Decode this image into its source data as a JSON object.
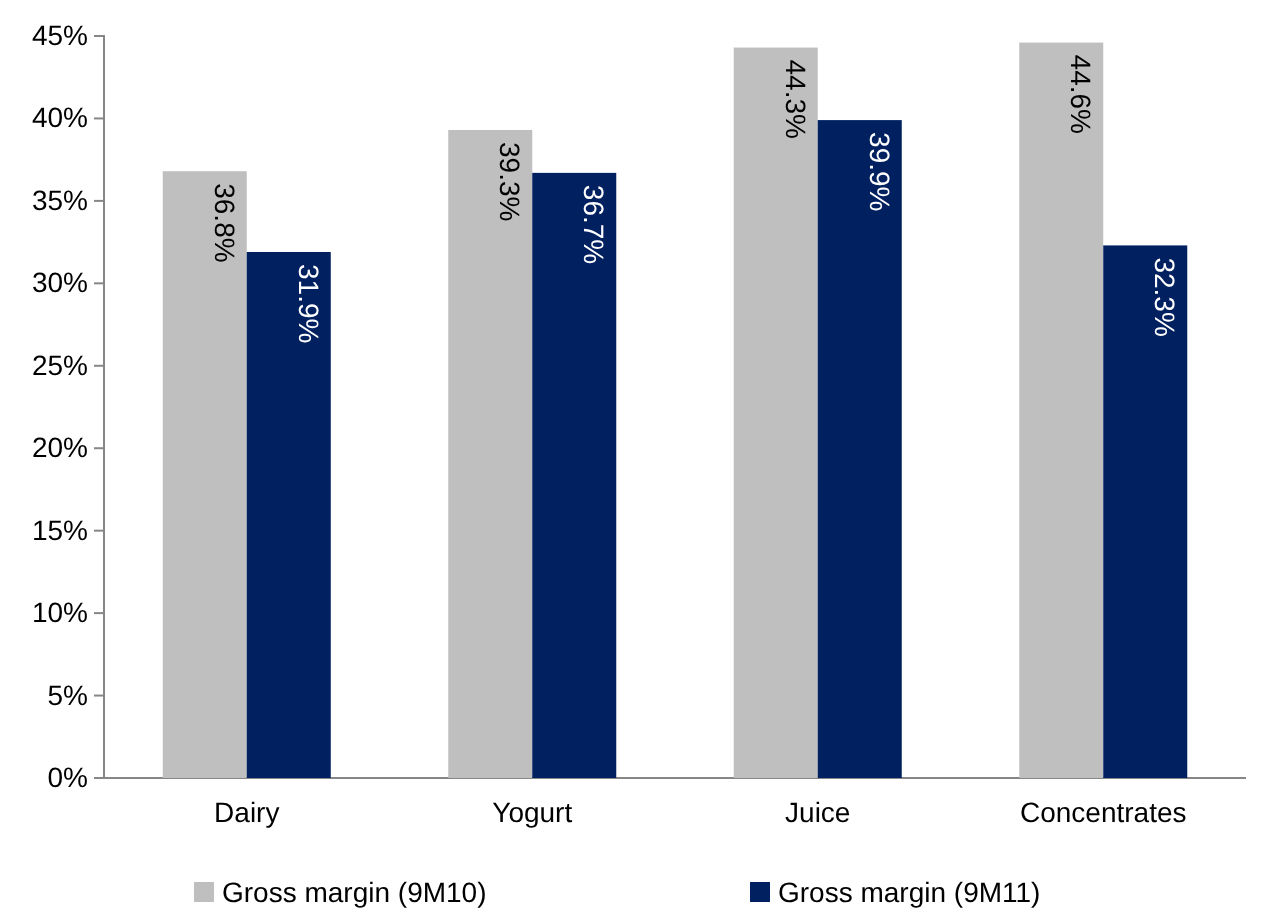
{
  "chart_data": {
    "type": "bar",
    "categories": [
      "Dairy",
      "Yogurt",
      "Juice",
      "Concentrates"
    ],
    "series": [
      {
        "name": "Gross margin (9M10)",
        "color": "#bfbfbf",
        "values": [
          36.8,
          39.3,
          44.3,
          44.6
        ],
        "value_labels": [
          "36.8%",
          "39.3%",
          "44.3%",
          "44.6%"
        ]
      },
      {
        "name": "Gross margin (9M11)",
        "color": "#002060",
        "values": [
          31.9,
          36.7,
          39.9,
          32.3
        ],
        "value_labels": [
          "31.9%",
          "36.7%",
          "39.9%",
          "32.3%"
        ]
      }
    ],
    "ylim": [
      0,
      45
    ],
    "yticks": [
      {
        "value": 0,
        "label": "0%"
      },
      {
        "value": 5,
        "label": "5%"
      },
      {
        "value": 10,
        "label": "10%"
      },
      {
        "value": 15,
        "label": "15%"
      },
      {
        "value": 20,
        "label": "20%"
      },
      {
        "value": 25,
        "label": "25%"
      },
      {
        "value": 30,
        "label": "30%"
      },
      {
        "value": 35,
        "label": "35%"
      },
      {
        "value": 40,
        "label": "40%"
      },
      {
        "value": 45,
        "label": "45%"
      }
    ],
    "grid": false,
    "legend": "bottom"
  }
}
